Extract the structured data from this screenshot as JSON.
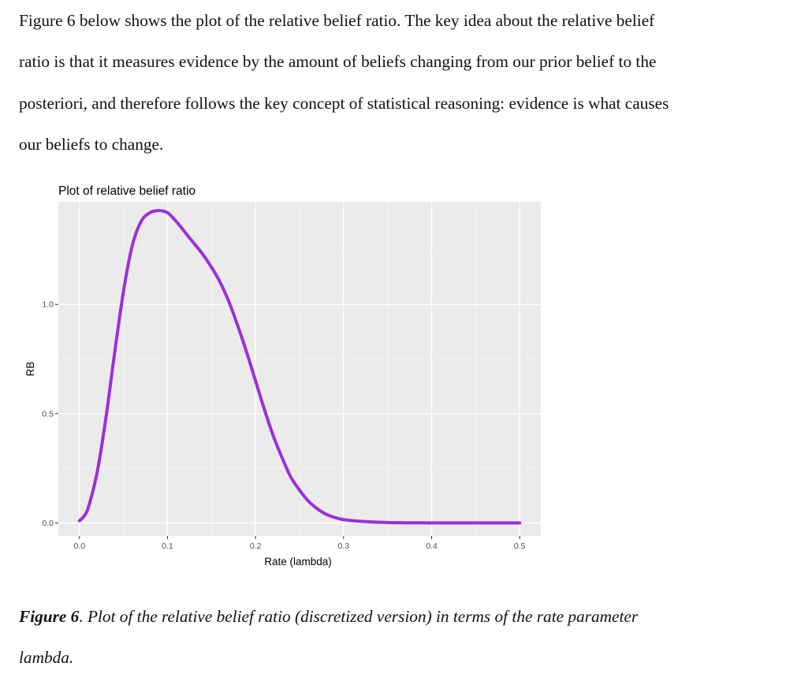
{
  "paragraph": {
    "lines": [
      "Figure 6 below shows the plot of the relative belief ratio. The key idea about the relative belief",
      "ratio is that it measures evidence by the amount of beliefs changing from our prior belief to the",
      "posteriori, and therefore follows the key concept of statistical reasoning: evidence is what causes",
      "our beliefs to change."
    ]
  },
  "caption": {
    "label": "Figure 6",
    "text_line1": ". Plot of the relative belief ratio (discretized version) in terms of the rate parameter",
    "text_line2": "lambda."
  },
  "colors": {
    "panel_background": "#ebebeb",
    "grid_major": "#ffffff",
    "grid_minor": "#f5f5f5",
    "curve": "#9b30d9",
    "tick_text": "#4d4d4d"
  },
  "chart_data": {
    "type": "line",
    "title": "Plot of relative belief ratio",
    "xlabel": "Rate (lambda)",
    "ylabel": "RB",
    "xlim": [
      -0.024,
      0.524
    ],
    "ylim": [
      -0.06,
      1.47
    ],
    "x_ticks": [
      "0.0",
      "0.1",
      "0.2",
      "0.3",
      "0.4",
      "0.5"
    ],
    "x_tick_values": [
      0.0,
      0.1,
      0.2,
      0.3,
      0.4,
      0.5
    ],
    "y_ticks": [
      "0.0",
      "0.5",
      "1.0"
    ],
    "y_tick_values": [
      0.0,
      0.5,
      1.0
    ],
    "grid": true,
    "series": [
      {
        "x": [
          0.0,
          0.005,
          0.01,
          0.02,
          0.03,
          0.04,
          0.05,
          0.06,
          0.07,
          0.08,
          0.09,
          0.1,
          0.11,
          0.12,
          0.13,
          0.14,
          0.15,
          0.16,
          0.17,
          0.18,
          0.19,
          0.2,
          0.21,
          0.22,
          0.23,
          0.24,
          0.25,
          0.26,
          0.27,
          0.28,
          0.29,
          0.3,
          0.32,
          0.34,
          0.36,
          0.38,
          0.4,
          0.45,
          0.5
        ],
        "y": [
          0.01,
          0.03,
          0.07,
          0.23,
          0.48,
          0.78,
          1.06,
          1.27,
          1.38,
          1.42,
          1.43,
          1.42,
          1.38,
          1.33,
          1.28,
          1.23,
          1.17,
          1.1,
          1.01,
          0.9,
          0.78,
          0.65,
          0.52,
          0.4,
          0.3,
          0.21,
          0.15,
          0.1,
          0.065,
          0.04,
          0.025,
          0.015,
          0.007,
          0.003,
          0.001,
          0.0005,
          0.0,
          0.0,
          0.0
        ]
      }
    ]
  }
}
